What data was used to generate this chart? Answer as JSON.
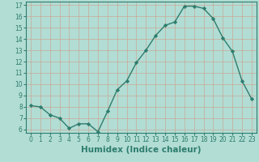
{
  "x": [
    0,
    1,
    2,
    3,
    4,
    5,
    6,
    7,
    8,
    9,
    10,
    11,
    12,
    13,
    14,
    15,
    16,
    17,
    18,
    19,
    20,
    21,
    22,
    23
  ],
  "y": [
    8.1,
    8.0,
    7.3,
    7.0,
    6.1,
    6.5,
    6.5,
    5.8,
    7.6,
    9.5,
    10.3,
    11.9,
    13.0,
    14.3,
    15.2,
    15.5,
    16.9,
    16.9,
    16.7,
    15.8,
    14.1,
    12.9,
    10.3,
    8.7
  ],
  "line_color": "#2e7d6e",
  "marker": "D",
  "marker_size": 2.2,
  "bg_color": "#b2ddd4",
  "grid_color": "#c8a898",
  "xlabel": "Humidex (Indice chaleur)",
  "ylim_min": 5.7,
  "ylim_max": 17.3,
  "xlim_min": -0.5,
  "xlim_max": 23.5,
  "yticks": [
    6,
    7,
    8,
    9,
    10,
    11,
    12,
    13,
    14,
    15,
    16,
    17
  ],
  "xticks": [
    0,
    1,
    2,
    3,
    4,
    5,
    6,
    7,
    8,
    9,
    10,
    11,
    12,
    13,
    14,
    15,
    16,
    17,
    18,
    19,
    20,
    21,
    22,
    23
  ],
  "tick_label_fontsize": 5.5,
  "xlabel_fontsize": 7.5,
  "xlabel_fontweight": "bold",
  "linewidth": 1.0
}
